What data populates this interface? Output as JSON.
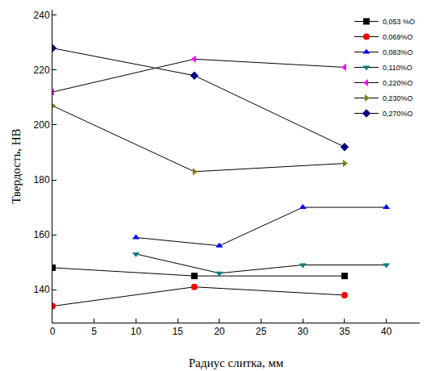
{
  "chart_data": {
    "type": "line",
    "x_label": "Радиус слитка, мм",
    "y_label": "Твердость, НВ",
    "xlim": [
      0,
      44
    ],
    "xticks": [
      0,
      5,
      10,
      15,
      20,
      25,
      30,
      35,
      40
    ],
    "ylim": [
      128,
      242
    ],
    "yticks": [
      140,
      160,
      180,
      200,
      220,
      240
    ],
    "grid": false,
    "legend": "upper right",
    "series": [
      {
        "name": "0,053 %O",
        "color": "#000000",
        "marker": "square",
        "x": [
          0,
          17,
          35
        ],
        "values": [
          148,
          145,
          145
        ]
      },
      {
        "name": "0,069%O",
        "color": "#ff0000",
        "marker": "circle",
        "x": [
          0,
          17,
          35
        ],
        "values": [
          134,
          141,
          138
        ]
      },
      {
        "name": "0,083%O",
        "color": "#0000ff",
        "marker": "triangle-up",
        "x": [
          10,
          20,
          30,
          40
        ],
        "values": [
          159,
          156,
          170,
          170
        ]
      },
      {
        "name": "0,110%O",
        "color": "#008080",
        "marker": "triangle-down",
        "x": [
          10,
          20,
          30,
          40
        ],
        "values": [
          153,
          146,
          149,
          149
        ]
      },
      {
        "name": "0,220%O",
        "color": "#ff00ff",
        "marker": "triangle-left",
        "x": [
          0,
          17,
          35
        ],
        "values": [
          212,
          224,
          221
        ]
      },
      {
        "name": "0,230%O",
        "color": "#808000",
        "marker": "triangle-right",
        "x": [
          0,
          17,
          35
        ],
        "values": [
          207,
          183,
          186
        ]
      },
      {
        "name": "0,270%O",
        "color": "#000080",
        "marker": "diamond",
        "x": [
          0,
          17,
          35
        ],
        "values": [
          228,
          218,
          192
        ]
      }
    ]
  }
}
